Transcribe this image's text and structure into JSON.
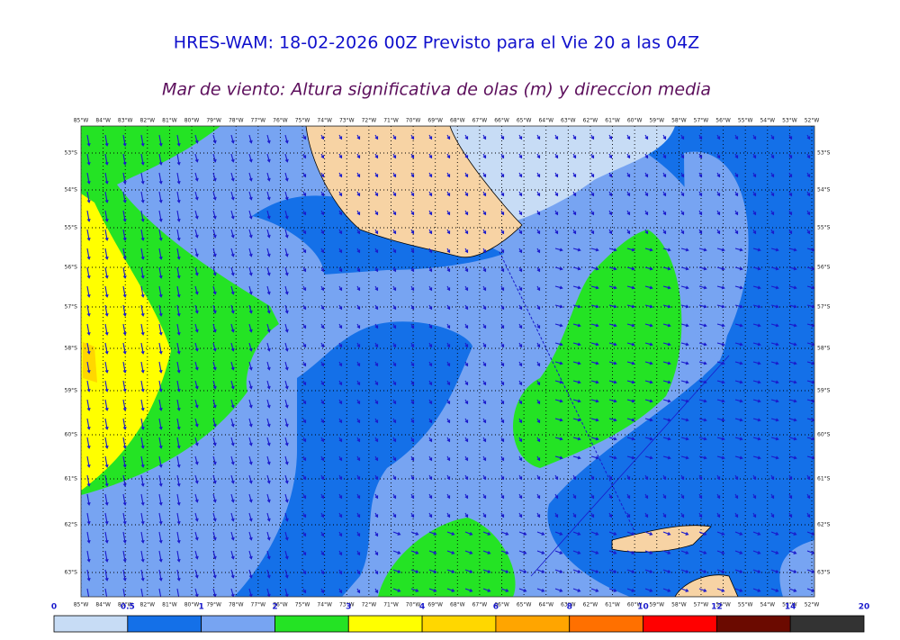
{
  "title": "HRES-WAM: 18-02-2026 00Z Previsto para el Vie 20 a las 04Z",
  "subtitle": "Mar de viento: Altura significativa de olas (m) y direccion media",
  "longitudes": [
    "85°W",
    "84°W",
    "83°W",
    "82°W",
    "81°W",
    "80°W",
    "79°W",
    "78°W",
    "77°W",
    "76°W",
    "75°W",
    "74°W",
    "73°W",
    "72°W",
    "71°W",
    "70°W",
    "69°W",
    "68°W",
    "67°W",
    "66°W",
    "65°W",
    "64°W",
    "63°W",
    "62°W",
    "61°W",
    "60°W",
    "59°W",
    "58°W",
    "57°W",
    "56°W",
    "55°W",
    "54°W",
    "53°W",
    "52°W"
  ],
  "latitudes": [
    "53°S",
    "54°S",
    "55°S",
    "56°S",
    "57°S",
    "58°S",
    "59°S",
    "60°S",
    "61°S",
    "62°S",
    "63°S"
  ],
  "colorbar": {
    "ticks": [
      0,
      0.5,
      1,
      2,
      3,
      4,
      6,
      8,
      10,
      12,
      14,
      20
    ],
    "colors": [
      "#c7dcf5",
      "#1470e8",
      "#77a4f2",
      "#24e324",
      "#ffff00",
      "#ffd700",
      "#ffa500",
      "#ff7000",
      "#ff0000",
      "#6b0a00",
      "#333333"
    ]
  }
}
